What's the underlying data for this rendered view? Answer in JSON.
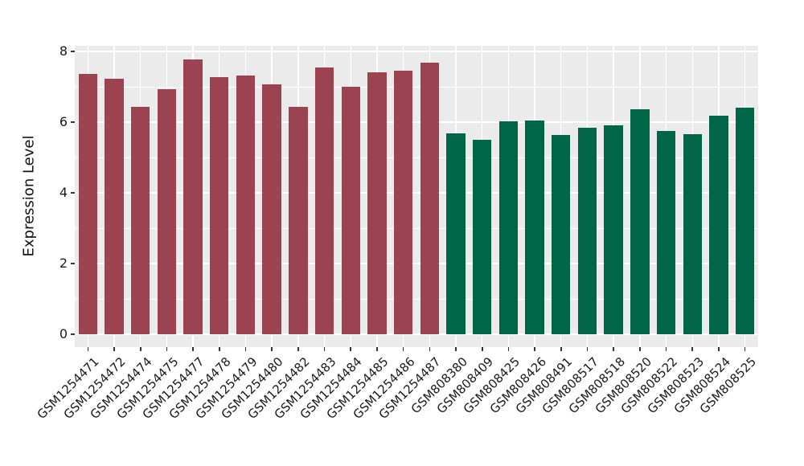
{
  "chart_data": {
    "type": "bar",
    "title": "",
    "xlabel": "",
    "ylabel": "Expression Level",
    "ylim": [
      0,
      8.15
    ],
    "yticks": [
      0,
      2,
      4,
      6,
      8
    ],
    "grid": {
      "horizontal_major": true,
      "horizontal_minor": true,
      "vertical_at_category_centers": true,
      "gridline_color": "#FFFFFF"
    },
    "legend": "none",
    "categories": [
      "GSM1254471",
      "GSM1254472",
      "GSM1254474",
      "GSM1254475",
      "GSM1254477",
      "GSM1254478",
      "GSM1254479",
      "GSM1254480",
      "GSM1254482",
      "GSM1254483",
      "GSM1254484",
      "GSM1254485",
      "GSM1254486",
      "GSM1254487",
      "GSM808380",
      "GSM808409",
      "GSM808425",
      "GSM808426",
      "GSM808491",
      "GSM808517",
      "GSM808518",
      "GSM808520",
      "GSM808522",
      "GSM808523",
      "GSM808524",
      "GSM808525"
    ],
    "values": [
      7.37,
      7.22,
      6.43,
      6.93,
      7.77,
      7.27,
      7.31,
      7.07,
      6.43,
      7.55,
      7.01,
      7.41,
      7.46,
      7.69,
      5.68,
      5.51,
      6.02,
      6.04,
      5.64,
      5.84,
      5.92,
      6.37,
      5.76,
      5.66,
      6.19,
      6.41
    ],
    "color_groups": [
      {
        "color": "#9B4351",
        "from": 0,
        "to": 13
      },
      {
        "color": "#006647",
        "from": 14,
        "to": 25
      }
    ]
  },
  "style": {
    "panel_bg": "#EBEBEB",
    "outer_bg": "#FFFFFF",
    "grid_color": "#FFFFFF",
    "tick_color": "#333333",
    "text_color": "#1A1A1A"
  }
}
